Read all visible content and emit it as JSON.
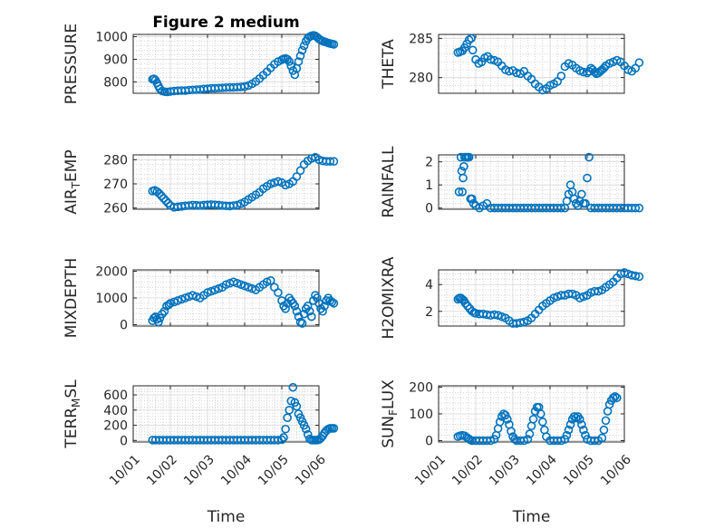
{
  "figure": {
    "title": "Figure 2 medium",
    "color": "#0072BD"
  },
  "chart_data": [
    {
      "type": "scatter",
      "title": "Figure 2 medium",
      "ylabel": "PRESSURE",
      "ylim": [
        750,
        1010
      ],
      "yticks": [
        800,
        900,
        1000
      ],
      "xticks": [],
      "grid": "on",
      "minor_grid": "on",
      "marker": "circle",
      "x": [
        0.52,
        0.56,
        0.6,
        0.64,
        0.68,
        0.72,
        0.78,
        0.85,
        0.92,
        1.0,
        1.1,
        1.2,
        1.3,
        1.4,
        1.5,
        1.6,
        1.7,
        1.8,
        1.9,
        2.0,
        2.1,
        2.2,
        2.3,
        2.4,
        2.5,
        2.6,
        2.7,
        2.8,
        2.9,
        3.0,
        3.1,
        3.2,
        3.3,
        3.4,
        3.5,
        3.6,
        3.7,
        3.8,
        3.9,
        4.0,
        4.05,
        4.1,
        4.15,
        4.2,
        4.25,
        4.3,
        4.35,
        4.4,
        4.45,
        4.5,
        4.55,
        4.6,
        4.65,
        4.7,
        4.75,
        4.8,
        4.85,
        4.9,
        4.95,
        5.0,
        5.05,
        5.1,
        5.15,
        5.2,
        5.25,
        5.3,
        5.35,
        5.4
      ],
      "y": [
        812,
        814,
        808,
        796,
        782,
        770,
        760,
        757,
        756,
        758,
        760,
        761,
        762,
        762,
        764,
        765,
        766,
        767,
        769,
        770,
        772,
        772,
        773,
        774,
        775,
        776,
        776,
        777,
        778,
        780,
        784,
        792,
        802,
        815,
        830,
        845,
        862,
        878,
        890,
        898,
        902,
        904,
        900,
        890,
        870,
        850,
        832,
        860,
        890,
        915,
        940,
        960,
        980,
        993,
        1000,
        1004,
        1006,
        1004,
        998,
        990,
        985,
        980,
        978,
        975,
        972,
        970,
        968,
        966
      ]
    },
    {
      "type": "scatter",
      "ylabel": "THETA",
      "ylim": [
        278,
        285.5
      ],
      "yticks": [
        280,
        285
      ],
      "xticks": [],
      "grid": "on",
      "minor_grid": "on",
      "marker": "circle",
      "x": [
        0.52,
        0.58,
        0.64,
        0.7,
        0.76,
        0.82,
        0.88,
        0.92,
        1.0,
        1.08,
        1.16,
        1.24,
        1.32,
        1.4,
        1.5,
        1.6,
        1.7,
        1.8,
        1.9,
        2.0,
        2.1,
        2.2,
        2.3,
        2.4,
        2.5,
        2.6,
        2.7,
        2.8,
        2.9,
        3.0,
        3.1,
        3.2,
        3.3,
        3.4,
        3.5,
        3.6,
        3.7,
        3.8,
        3.9,
        4.0,
        4.05,
        4.1,
        4.15,
        4.2,
        4.25,
        4.3,
        4.35,
        4.4,
        4.45,
        4.5,
        4.6,
        4.7,
        4.8,
        4.9,
        5.0,
        5.1,
        5.2,
        5.3,
        5.4
      ],
      "y": [
        283.2,
        283.3,
        283.4,
        283.8,
        284.3,
        284.8,
        285.0,
        283.5,
        282.3,
        281.8,
        282.0,
        282.5,
        282.7,
        282.3,
        282.2,
        282.0,
        281.5,
        281.0,
        280.8,
        280.9,
        280.6,
        280.5,
        280.8,
        280.2,
        279.8,
        279.2,
        278.8,
        278.4,
        278.6,
        279.0,
        279.2,
        279.5,
        280.2,
        281.4,
        281.8,
        281.6,
        281.2,
        280.9,
        280.7,
        280.6,
        280.8,
        281.2,
        281.0,
        280.7,
        280.5,
        280.6,
        280.8,
        281.0,
        281.2,
        281.5,
        281.8,
        282.0,
        282.2,
        282.0,
        281.5,
        281.0,
        280.8,
        281.2,
        281.9
      ]
    },
    {
      "type": "scatter",
      "ylabel": "AIR_TEMP",
      "ylim": [
        259.5,
        282
      ],
      "yticks": [
        260,
        270,
        280
      ],
      "xticks": [],
      "grid": "on",
      "minor_grid": "on",
      "marker": "circle",
      "x": [
        0.52,
        0.58,
        0.64,
        0.7,
        0.76,
        0.82,
        0.88,
        0.94,
        1.0,
        1.1,
        1.2,
        1.3,
        1.4,
        1.5,
        1.6,
        1.7,
        1.8,
        1.9,
        2.0,
        2.1,
        2.2,
        2.3,
        2.4,
        2.5,
        2.6,
        2.7,
        2.8,
        2.9,
        3.0,
        3.1,
        3.2,
        3.3,
        3.4,
        3.5,
        3.6,
        3.7,
        3.8,
        3.9,
        4.0,
        4.1,
        4.2,
        4.3,
        4.4,
        4.5,
        4.6,
        4.7,
        4.8,
        4.9,
        5.0,
        5.1,
        5.2,
        5.3,
        5.4
      ],
      "y": [
        267.0,
        267.3,
        266.8,
        266.0,
        265.0,
        264.0,
        263.0,
        262.0,
        261.0,
        260.3,
        260.5,
        260.7,
        260.9,
        261.0,
        261.2,
        261.1,
        261.0,
        261.2,
        261.3,
        261.4,
        261.3,
        261.2,
        261.0,
        260.9,
        260.8,
        261.0,
        261.2,
        261.8,
        262.5,
        263.5,
        264.5,
        265.5,
        266.5,
        268.0,
        269.0,
        270.0,
        270.5,
        271.0,
        270.5,
        269.5,
        270.0,
        271.0,
        273.0,
        275.5,
        278.0,
        279.5,
        280.5,
        281.0,
        280.0,
        279.5,
        279.3,
        279.3,
        279.3
      ]
    },
    {
      "type": "scatter",
      "ylabel": "RAINFALL",
      "ylim": [
        -0.05,
        2.3
      ],
      "yticks": [
        0,
        1,
        2
      ],
      "xticks": [],
      "grid": "on",
      "minor_grid": "on",
      "marker": "circle",
      "x": [
        0.55,
        0.6,
        0.62,
        0.64,
        0.66,
        0.68,
        0.7,
        0.74,
        0.78,
        0.82,
        0.86,
        0.9,
        0.94,
        1.0,
        1.1,
        1.2,
        1.3,
        1.4,
        1.5,
        1.6,
        1.7,
        1.8,
        1.9,
        2.0,
        2.1,
        2.2,
        2.3,
        2.4,
        2.5,
        2.6,
        2.7,
        2.8,
        2.9,
        3.0,
        3.1,
        3.2,
        3.3,
        3.4,
        3.45,
        3.5,
        3.55,
        3.6,
        3.65,
        3.7,
        3.75,
        3.8,
        3.85,
        3.9,
        3.95,
        4.0,
        4.05,
        4.1,
        4.2,
        4.3,
        4.4,
        4.5,
        4.6,
        4.7,
        4.8,
        4.9,
        5.0,
        5.1,
        5.2,
        5.3,
        5.4
      ],
      "y": [
        0.7,
        2.2,
        1.6,
        0.7,
        1.3,
        1.8,
        2.2,
        2.2,
        2.2,
        2.2,
        0.4,
        0.4,
        0.2,
        0.1,
        0.0,
        0.1,
        0.2,
        0.0,
        0.0,
        0.0,
        0.0,
        0.0,
        0.0,
        0.0,
        0.0,
        0.0,
        0.0,
        0.0,
        0.0,
        0.0,
        0.0,
        0.0,
        0.0,
        0.0,
        0.0,
        0.0,
        0.0,
        0.0,
        0.3,
        0.6,
        1.0,
        0.7,
        0.4,
        0.2,
        0.1,
        0.3,
        0.6,
        0.2,
        0.2,
        1.3,
        2.2,
        0.0,
        0.0,
        0.0,
        0.0,
        0.0,
        0.0,
        0.0,
        0.0,
        0.0,
        0.0,
        0.0,
        0.0,
        0.0,
        0.0
      ]
    },
    {
      "type": "scatter",
      "ylabel": "MIXDEPTH",
      "ylim": [
        -50,
        2050
      ],
      "yticks": [
        0,
        1000,
        2000
      ],
      "xticks": [],
      "grid": "on",
      "minor_grid": "on",
      "marker": "circle",
      "x": [
        0.52,
        0.56,
        0.6,
        0.64,
        0.68,
        0.72,
        0.78,
        0.84,
        0.9,
        0.96,
        1.0,
        1.1,
        1.2,
        1.3,
        1.4,
        1.5,
        1.6,
        1.7,
        1.8,
        1.9,
        2.0,
        2.1,
        2.2,
        2.3,
        2.4,
        2.5,
        2.6,
        2.7,
        2.8,
        2.9,
        3.0,
        3.1,
        3.2,
        3.3,
        3.4,
        3.5,
        3.6,
        3.7,
        3.8,
        3.9,
        4.0,
        4.05,
        4.1,
        4.15,
        4.2,
        4.25,
        4.3,
        4.35,
        4.4,
        4.45,
        4.5,
        4.55,
        4.6,
        4.65,
        4.7,
        4.75,
        4.8,
        4.85,
        4.9,
        4.95,
        5.0,
        5.05,
        5.1,
        5.15,
        5.2,
        5.25,
        5.3,
        5.35,
        5.4
      ],
      "y": [
        150,
        250,
        300,
        200,
        100,
        250,
        400,
        500,
        700,
        750,
        800,
        850,
        900,
        950,
        1000,
        1050,
        1100,
        1050,
        1000,
        1100,
        1200,
        1250,
        1300,
        1350,
        1400,
        1500,
        1550,
        1600,
        1550,
        1500,
        1450,
        1400,
        1350,
        1300,
        1400,
        1500,
        1600,
        1650,
        1400,
        1200,
        900,
        700,
        600,
        800,
        1000,
        900,
        800,
        700,
        500,
        300,
        100,
        50,
        400,
        600,
        700,
        500,
        300,
        900,
        1100,
        1000,
        800,
        600,
        500,
        700,
        900,
        1000,
        900,
        850,
        800
      ]
    },
    {
      "type": "scatter",
      "ylabel": "H2OMIXRA",
      "ylim": [
        0.9,
        5.1
      ],
      "yticks": [
        2,
        4
      ],
      "xticks": [],
      "grid": "on",
      "minor_grid": "on",
      "marker": "circle",
      "x": [
        0.52,
        0.56,
        0.6,
        0.64,
        0.68,
        0.72,
        0.78,
        0.84,
        0.9,
        0.96,
        1.0,
        1.1,
        1.2,
        1.3,
        1.4,
        1.5,
        1.6,
        1.7,
        1.8,
        1.9,
        2.0,
        2.1,
        2.2,
        2.3,
        2.4,
        2.5,
        2.6,
        2.7,
        2.8,
        2.9,
        3.0,
        3.1,
        3.2,
        3.3,
        3.4,
        3.5,
        3.6,
        3.7,
        3.8,
        3.9,
        4.0,
        4.1,
        4.2,
        4.3,
        4.4,
        4.5,
        4.6,
        4.7,
        4.8,
        4.9,
        5.0,
        5.1,
        5.2,
        5.3,
        5.4
      ],
      "y": [
        2.9,
        3.0,
        3.0,
        2.9,
        2.8,
        2.6,
        2.4,
        2.2,
        2.0,
        1.9,
        1.85,
        1.8,
        1.8,
        1.75,
        1.7,
        1.75,
        1.7,
        1.6,
        1.5,
        1.3,
        1.1,
        1.1,
        1.15,
        1.2,
        1.3,
        1.5,
        1.8,
        2.1,
        2.4,
        2.6,
        2.8,
        3.0,
        3.1,
        3.2,
        3.2,
        3.3,
        3.3,
        3.2,
        3.0,
        3.1,
        3.2,
        3.4,
        3.5,
        3.5,
        3.6,
        3.8,
        4.0,
        4.2,
        4.5,
        4.8,
        4.9,
        4.8,
        4.7,
        4.65,
        4.6
      ]
    },
    {
      "type": "scatter",
      "ylabel": "TERR_MSL",
      "xlabel": "Time",
      "ylim": [
        -20,
        720
      ],
      "yticks": [
        0,
        200,
        400,
        600
      ],
      "xticks": [
        "10/01",
        "10/02",
        "10/03",
        "10/04",
        "10/05",
        "10/06"
      ],
      "grid": "on",
      "minor_grid": "on",
      "marker": "circle",
      "x": [
        0.52,
        0.6,
        0.7,
        0.8,
        0.9,
        1.0,
        1.1,
        1.2,
        1.3,
        1.4,
        1.5,
        1.6,
        1.7,
        1.8,
        1.9,
        2.0,
        2.1,
        2.2,
        2.3,
        2.4,
        2.5,
        2.6,
        2.7,
        2.8,
        2.9,
        3.0,
        3.1,
        3.2,
        3.3,
        3.4,
        3.5,
        3.6,
        3.7,
        3.8,
        3.9,
        4.0,
        4.05,
        4.1,
        4.15,
        4.2,
        4.25,
        4.3,
        4.35,
        4.4,
        4.45,
        4.5,
        4.55,
        4.6,
        4.65,
        4.7,
        4.75,
        4.8,
        4.85,
        4.9,
        4.95,
        5.0,
        5.05,
        5.1,
        5.15,
        5.2,
        5.25,
        5.3,
        5.35,
        5.4
      ],
      "y": [
        5,
        5,
        5,
        5,
        5,
        5,
        5,
        5,
        5,
        5,
        5,
        5,
        5,
        5,
        5,
        5,
        5,
        5,
        5,
        5,
        5,
        5,
        5,
        5,
        5,
        5,
        5,
        5,
        5,
        5,
        5,
        5,
        5,
        5,
        5,
        10,
        40,
        150,
        300,
        400,
        520,
        700,
        500,
        450,
        350,
        300,
        250,
        200,
        150,
        80,
        20,
        5,
        5,
        5,
        5,
        10,
        30,
        60,
        100,
        130,
        150,
        160,
        160,
        160
      ]
    },
    {
      "type": "scatter",
      "ylabel": "SUN_FLUX",
      "xlabel": "Time",
      "ylim": [
        -5,
        205
      ],
      "yticks": [
        0,
        100,
        200
      ],
      "xticks": [
        "10/01",
        "10/02",
        "10/03",
        "10/04",
        "10/05",
        "10/06"
      ],
      "grid": "on",
      "minor_grid": "on",
      "marker": "circle",
      "x": [
        0.52,
        0.58,
        0.64,
        0.7,
        0.76,
        0.8,
        0.85,
        0.9,
        1.0,
        1.1,
        1.2,
        1.3,
        1.4,
        1.5,
        1.55,
        1.6,
        1.65,
        1.7,
        1.75,
        1.8,
        1.85,
        1.9,
        1.95,
        2.0,
        2.05,
        2.1,
        2.2,
        2.3,
        2.4,
        2.45,
        2.5,
        2.55,
        2.6,
        2.65,
        2.7,
        2.75,
        2.8,
        2.85,
        2.9,
        3.0,
        3.1,
        3.2,
        3.3,
        3.4,
        3.45,
        3.5,
        3.55,
        3.6,
        3.65,
        3.7,
        3.75,
        3.8,
        3.85,
        3.9,
        3.95,
        4.0,
        4.1,
        4.2,
        4.3,
        4.4,
        4.45,
        4.5,
        4.55,
        4.6,
        4.65,
        4.7,
        4.75,
        4.8
      ],
      "y": [
        15,
        18,
        20,
        18,
        12,
        8,
        3,
        0,
        0,
        0,
        0,
        0,
        0,
        5,
        20,
        45,
        70,
        90,
        100,
        95,
        80,
        60,
        35,
        15,
        5,
        0,
        0,
        0,
        5,
        25,
        55,
        80,
        110,
        125,
        125,
        100,
        70,
        40,
        15,
        0,
        0,
        0,
        0,
        5,
        20,
        40,
        60,
        80,
        90,
        85,
        90,
        80,
        60,
        40,
        20,
        5,
        0,
        0,
        0,
        10,
        40,
        75,
        110,
        135,
        150,
        160,
        165,
        160
      ]
    }
  ]
}
